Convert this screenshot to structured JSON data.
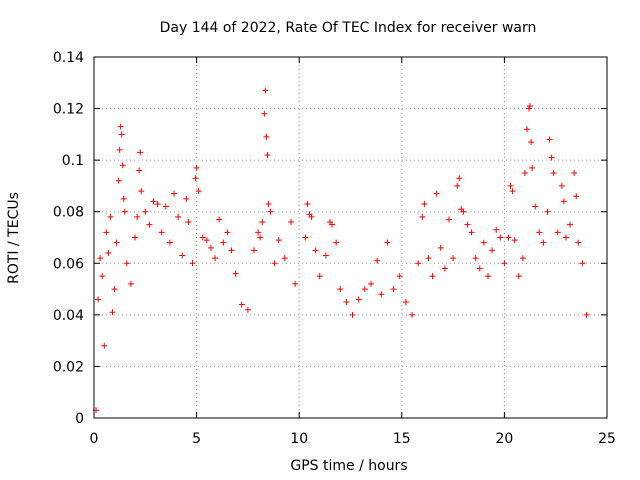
{
  "chart_data": {
    "type": "scatter",
    "title": "Day 144 of 2022, Rate Of TEC Index for receiver warn",
    "xlabel": "GPS time / hours",
    "ylabel": "ROTI / TECUs",
    "xlim": [
      0,
      25
    ],
    "ylim": [
      0,
      0.14
    ],
    "xticks": [
      "0",
      "5",
      "10",
      "15",
      "20",
      "25"
    ],
    "yticks": [
      "0",
      "0.02",
      "0.04",
      "0.06",
      "0.08",
      "0.1",
      "0.12",
      "0.14"
    ],
    "grid": true,
    "marker": "plus",
    "color": "#ff0000",
    "series": [
      {
        "points": [
          [
            0.1,
            0.003
          ],
          [
            0.2,
            0.046
          ],
          [
            0.3,
            0.062
          ],
          [
            0.4,
            0.055
          ],
          [
            0.5,
            0.028
          ],
          [
            0.6,
            0.072
          ],
          [
            0.7,
            0.064
          ],
          [
            0.8,
            0.078
          ],
          [
            0.9,
            0.041
          ],
          [
            1.0,
            0.05
          ],
          [
            1.1,
            0.068
          ],
          [
            1.2,
            0.092
          ],
          [
            1.25,
            0.104
          ],
          [
            1.3,
            0.113
          ],
          [
            1.35,
            0.11
          ],
          [
            1.4,
            0.098
          ],
          [
            1.45,
            0.085
          ],
          [
            1.5,
            0.08
          ],
          [
            1.6,
            0.06
          ],
          [
            1.8,
            0.052
          ],
          [
            2.0,
            0.07
          ],
          [
            2.1,
            0.078
          ],
          [
            2.2,
            0.096
          ],
          [
            2.25,
            0.103
          ],
          [
            2.3,
            0.088
          ],
          [
            2.5,
            0.08
          ],
          [
            2.7,
            0.075
          ],
          [
            2.9,
            0.084
          ],
          [
            3.1,
            0.083
          ],
          [
            3.3,
            0.072
          ],
          [
            3.5,
            0.082
          ],
          [
            3.7,
            0.068
          ],
          [
            3.9,
            0.087
          ],
          [
            4.1,
            0.078
          ],
          [
            4.3,
            0.063
          ],
          [
            4.5,
            0.085
          ],
          [
            4.6,
            0.076
          ],
          [
            4.8,
            0.06
          ],
          [
            4.95,
            0.093
          ],
          [
            5.0,
            0.097
          ],
          [
            5.1,
            0.088
          ],
          [
            5.3,
            0.07
          ],
          [
            5.5,
            0.069
          ],
          [
            5.7,
            0.066
          ],
          [
            5.9,
            0.062
          ],
          [
            6.1,
            0.077
          ],
          [
            6.3,
            0.068
          ],
          [
            6.5,
            0.072
          ],
          [
            6.7,
            0.065
          ],
          [
            6.9,
            0.056
          ],
          [
            7.2,
            0.044
          ],
          [
            7.5,
            0.042
          ],
          [
            7.8,
            0.065
          ],
          [
            8.0,
            0.072
          ],
          [
            8.1,
            0.07
          ],
          [
            8.2,
            0.076
          ],
          [
            8.3,
            0.118
          ],
          [
            8.35,
            0.127
          ],
          [
            8.4,
            0.109
          ],
          [
            8.45,
            0.102
          ],
          [
            8.5,
            0.083
          ],
          [
            8.6,
            0.08
          ],
          [
            8.8,
            0.06
          ],
          [
            9.0,
            0.069
          ],
          [
            9.3,
            0.062
          ],
          [
            9.6,
            0.076
          ],
          [
            9.8,
            0.052
          ],
          [
            10.3,
            0.07
          ],
          [
            10.4,
            0.083
          ],
          [
            10.5,
            0.079
          ],
          [
            10.6,
            0.078
          ],
          [
            10.8,
            0.065
          ],
          [
            11.0,
            0.055
          ],
          [
            11.3,
            0.063
          ],
          [
            11.5,
            0.076
          ],
          [
            11.6,
            0.075
          ],
          [
            11.8,
            0.068
          ],
          [
            12.0,
            0.05
          ],
          [
            12.3,
            0.045
          ],
          [
            12.6,
            0.04
          ],
          [
            12.9,
            0.046
          ],
          [
            13.2,
            0.05
          ],
          [
            13.5,
            0.052
          ],
          [
            13.8,
            0.061
          ],
          [
            14.0,
            0.048
          ],
          [
            14.3,
            0.068
          ],
          [
            14.6,
            0.05
          ],
          [
            14.9,
            0.055
          ],
          [
            15.2,
            0.045
          ],
          [
            15.5,
            0.04
          ],
          [
            15.8,
            0.06
          ],
          [
            16.0,
            0.078
          ],
          [
            16.1,
            0.083
          ],
          [
            16.3,
            0.062
          ],
          [
            16.5,
            0.055
          ],
          [
            16.7,
            0.087
          ],
          [
            16.9,
            0.066
          ],
          [
            17.1,
            0.058
          ],
          [
            17.3,
            0.077
          ],
          [
            17.5,
            0.062
          ],
          [
            17.7,
            0.09
          ],
          [
            17.8,
            0.093
          ],
          [
            17.9,
            0.081
          ],
          [
            18.0,
            0.08
          ],
          [
            18.2,
            0.075
          ],
          [
            18.4,
            0.072
          ],
          [
            18.6,
            0.062
          ],
          [
            18.8,
            0.058
          ],
          [
            19.0,
            0.068
          ],
          [
            19.2,
            0.055
          ],
          [
            19.4,
            0.065
          ],
          [
            19.6,
            0.073
          ],
          [
            19.8,
            0.07
          ],
          [
            20.0,
            0.06
          ],
          [
            20.2,
            0.07
          ],
          [
            20.3,
            0.09
          ],
          [
            20.4,
            0.088
          ],
          [
            20.5,
            0.069
          ],
          [
            20.7,
            0.055
          ],
          [
            20.9,
            0.062
          ],
          [
            21.0,
            0.095
          ],
          [
            21.1,
            0.112
          ],
          [
            21.2,
            0.12
          ],
          [
            21.25,
            0.121
          ],
          [
            21.3,
            0.107
          ],
          [
            21.35,
            0.097
          ],
          [
            21.5,
            0.082
          ],
          [
            21.7,
            0.072
          ],
          [
            21.9,
            0.068
          ],
          [
            22.1,
            0.08
          ],
          [
            22.2,
            0.108
          ],
          [
            22.3,
            0.101
          ],
          [
            22.4,
            0.095
          ],
          [
            22.6,
            0.072
          ],
          [
            22.8,
            0.09
          ],
          [
            22.9,
            0.084
          ],
          [
            23.0,
            0.07
          ],
          [
            23.2,
            0.075
          ],
          [
            23.4,
            0.095
          ],
          [
            23.5,
            0.086
          ],
          [
            23.6,
            0.068
          ],
          [
            23.8,
            0.06
          ],
          [
            24.0,
            0.04
          ]
        ]
      }
    ]
  }
}
